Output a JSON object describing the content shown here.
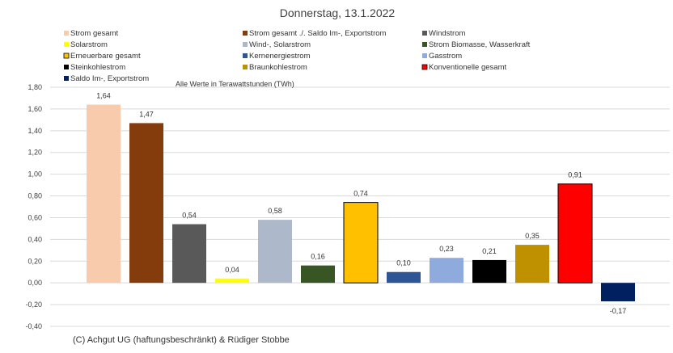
{
  "chart_data": {
    "type": "bar",
    "title": "Donnerstag, 13.1.2022",
    "note": "Alle Werte in Terawattstunden (TWh)",
    "credit": "(C) Achgut UG (haftungsbeschränkt) & Rüdiger Stobbe",
    "ylim": [
      -0.4,
      1.8
    ],
    "ytick_labels": [
      "1,80",
      "1,60",
      "1,40",
      "1,20",
      "1,00",
      "0,80",
      "0,60",
      "0,40",
      "0,20",
      "0,00",
      "-0,20",
      "-0,40"
    ],
    "ytick_values": [
      1.8,
      1.6,
      1.4,
      1.2,
      1.0,
      0.8,
      0.6,
      0.4,
      0.2,
      0.0,
      -0.2,
      -0.4
    ],
    "grid": true,
    "series": [
      {
        "name": "Strom gesamt",
        "value": 1.64,
        "label": "1,64",
        "color": "#F8CBAD"
      },
      {
        "name": "Strom gesamt ./. Saldo Im-, Exportstrom",
        "value": 1.47,
        "label": "1,47",
        "color": "#843C0C"
      },
      {
        "name": "Windstrom",
        "value": 0.54,
        "label": "0,54",
        "color": "#595959"
      },
      {
        "name": "Solarstrom",
        "value": 0.04,
        "label": "0,04",
        "color": "#FFFF00"
      },
      {
        "name": "Wind-, Solarstrom",
        "value": 0.58,
        "label": "0,58",
        "color": "#ADB9CA"
      },
      {
        "name": "Strom Biomasse, Wasserkraft",
        "value": 0.16,
        "label": "0,16",
        "color": "#375623"
      },
      {
        "name": "Erneuerbare gesamt",
        "value": 0.74,
        "label": "0,74",
        "color": "#FFC000"
      },
      {
        "name": "Kernenergiestrom",
        "value": 0.1,
        "label": "0,10",
        "color": "#2F5597"
      },
      {
        "name": "Gasstrom",
        "value": 0.23,
        "label": "0,23",
        "color": "#8FAADC"
      },
      {
        "name": "Steinkohlestrom",
        "value": 0.21,
        "label": "0,21",
        "color": "#000000"
      },
      {
        "name": "Braunkohlestrom",
        "value": 0.35,
        "label": "0,35",
        "color": "#BF9000"
      },
      {
        "name": "Konventionelle gesamt",
        "value": 0.91,
        "label": "0,91",
        "color": "#FF0000"
      },
      {
        "name": "Saldo Im-, Exportstrom",
        "value": -0.17,
        "label": "-0,17",
        "color": "#002060"
      }
    ],
    "outlined": [
      "Erneuerbare gesamt",
      "Konventionelle gesamt"
    ]
  }
}
